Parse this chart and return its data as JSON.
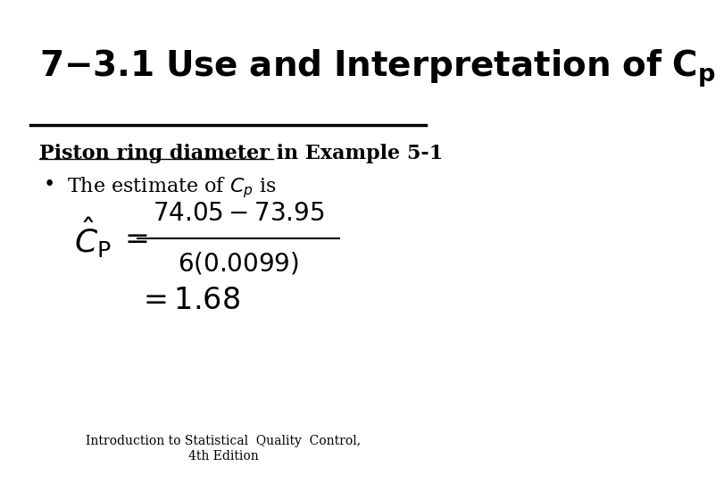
{
  "bg_color": "#ffffff",
  "line_color": "#000000",
  "title": "7-3.1 Use and Interpretation of $C_p$",
  "subtitle": "Piston ring diameter in Example 5-1",
  "bullet_text": "The estimate of $C_p$ is",
  "footer_line1": "Introduction to Statistical  Quality  Control,",
  "footer_line2": "4th Edition",
  "title_fontsize": 28,
  "subtitle_fontsize": 16,
  "bullet_fontsize": 16,
  "formula_fontsize": 20,
  "footer_fontsize": 10
}
